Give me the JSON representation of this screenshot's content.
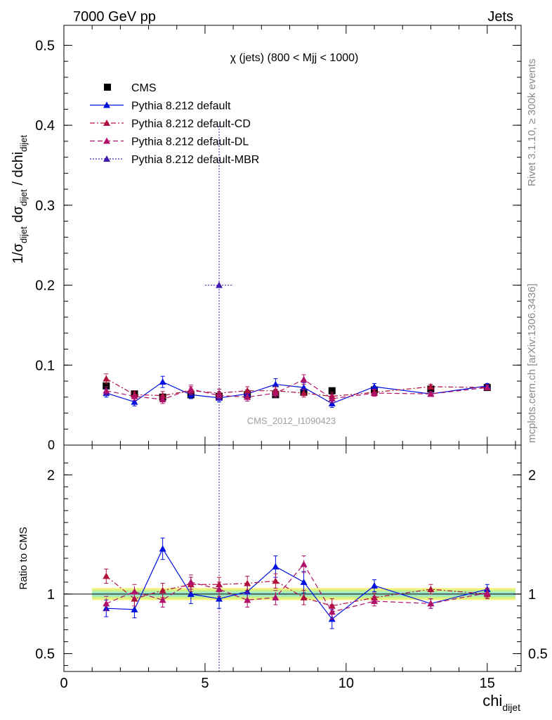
{
  "header": {
    "left": "7000 GeV pp",
    "right": "Jets"
  },
  "side_labels": {
    "rivet": "Rivet 3.1.10, ≥ 300k events",
    "mcplots": "mcplots.cern.ch [arXiv:1306.3436]"
  },
  "watermark": "CMS_2012_I1090423",
  "chart_data": [
    {
      "type": "line",
      "title": "χ (jets) (800 < Mjj < 1000)",
      "ylabel": {
        "base": "1/σ",
        "sub1": "dijet",
        "mid": " dσ",
        "sub2": "dijet",
        "tail": " / dchi",
        "sub3": "dijet"
      },
      "xlabel": {
        "base": "chi",
        "sub": "dijet"
      },
      "xlim": [
        0,
        16.2
      ],
      "ylim": [
        0,
        0.525
      ],
      "yticks": [
        0.1,
        0.2,
        0.3,
        0.4,
        0.5
      ],
      "ytick_labels": [
        "0.1",
        "0.2",
        "0.3",
        "0.4",
        "0.5"
      ],
      "y_zero_label": "0",
      "x": [
        1.5,
        2.5,
        3.5,
        4.5,
        5.5,
        6.5,
        7.5,
        8.5,
        9.5,
        11.0,
        13.0,
        15.0
      ],
      "xerr": [
        0.5,
        0.5,
        0.5,
        0.5,
        0.5,
        0.5,
        0.5,
        0.5,
        0.5,
        1.0,
        1.0,
        1.0
      ],
      "legend": [
        {
          "name": "CMS",
          "color": "#000000",
          "style": "square"
        },
        {
          "name": "Pythia 8.212 default",
          "color": "#0010e0",
          "style": "solid"
        },
        {
          "name": "Pythia 8.212 default-CD",
          "color": "#b0103a",
          "style": "dashdot"
        },
        {
          "name": "Pythia 8.212 default-DL",
          "color": "#b0106a",
          "style": "dash"
        },
        {
          "name": "Pythia 8.212 default-MBR",
          "color": "#4018b0",
          "style": "dot"
        }
      ],
      "series": [
        {
          "name": "CMS",
          "values": [
            0.074,
            0.064,
            0.06,
            0.063,
            0.061,
            0.063,
            0.063,
            0.066,
            0.068,
            0.069,
            0.07,
            0.072
          ],
          "yerr": [
            0.002,
            0.002,
            0.002,
            0.002,
            0.002,
            0.002,
            0.002,
            0.002,
            0.002,
            0.002,
            0.002,
            0.002
          ]
        },
        {
          "name": "Pythia 8.212 default",
          "values": [
            0.065,
            0.054,
            0.079,
            0.063,
            0.059,
            0.064,
            0.076,
            0.072,
            0.052,
            0.073,
            0.064,
            0.074
          ],
          "yerr": [
            0.005,
            0.005,
            0.007,
            0.005,
            0.005,
            0.005,
            0.007,
            0.006,
            0.005,
            0.004,
            0.003,
            0.003
          ]
        },
        {
          "name": "Pythia 8.212 default-CD",
          "values": [
            0.083,
            0.063,
            0.062,
            0.068,
            0.065,
            0.068,
            0.068,
            0.065,
            0.061,
            0.066,
            0.073,
            0.072
          ],
          "yerr": [
            0.006,
            0.005,
            0.005,
            0.005,
            0.005,
            0.005,
            0.005,
            0.005,
            0.005,
            0.004,
            0.003,
            0.003
          ]
        },
        {
          "name": "Pythia 8.212 default-DL",
          "values": [
            0.068,
            0.061,
            0.057,
            0.07,
            0.062,
            0.06,
            0.065,
            0.082,
            0.058,
            0.065,
            0.064,
            0.072
          ],
          "yerr": [
            0.005,
            0.005,
            0.005,
            0.005,
            0.005,
            0.005,
            0.005,
            0.006,
            0.005,
            0.004,
            0.003,
            0.003
          ]
        },
        {
          "name": "Pythia 8.212 default-MBR",
          "values": [
            null,
            null,
            null,
            null,
            0.2,
            null,
            null,
            null,
            null,
            null,
            null,
            null
          ],
          "yerr": [
            0,
            0,
            0,
            0,
            0.2,
            0,
            0,
            0,
            0,
            0,
            0,
            0
          ]
        }
      ]
    },
    {
      "type": "line",
      "ylabel": "Ratio to CMS",
      "xlim": [
        0,
        16.2
      ],
      "ylim": [
        0.35,
        2.25
      ],
      "yticks": [
        0.5,
        1,
        2
      ],
      "ytick_labels": [
        "0.5",
        "1",
        "2"
      ],
      "xticks": [
        0,
        5,
        10,
        15
      ],
      "xtick_labels": [
        "0",
        "5",
        "10",
        "15"
      ],
      "band": {
        "outer": "#f2f27a",
        "middle": "#c8f08a",
        "inner": "#9ee8c8",
        "half_widths": [
          0.05,
          0.035,
          0.02
        ]
      },
      "series": [
        {
          "name": "Pythia 8.212 default",
          "values": [
            0.88,
            0.87,
            1.38,
            1.0,
            0.96,
            1.02,
            1.23,
            1.1,
            0.79,
            1.07,
            0.92,
            1.04
          ],
          "yerr": [
            0.07,
            0.07,
            0.09,
            0.08,
            0.08,
            0.07,
            0.09,
            0.09,
            0.08,
            0.05,
            0.04,
            0.04
          ]
        },
        {
          "name": "Pythia 8.212 default-CD",
          "values": [
            1.15,
            0.96,
            1.03,
            1.08,
            1.08,
            1.09,
            1.11,
            0.97,
            0.9,
            0.97,
            1.04,
            1.0
          ],
          "yerr": [
            0.06,
            0.06,
            0.06,
            0.06,
            0.06,
            0.06,
            0.06,
            0.06,
            0.06,
            0.04,
            0.04,
            0.04
          ]
        },
        {
          "name": "Pythia 8.212 default-DL",
          "values": [
            0.92,
            1.02,
            0.95,
            1.1,
            1.04,
            0.95,
            0.97,
            1.25,
            0.85,
            0.94,
            0.92,
            1.01
          ],
          "yerr": [
            0.06,
            0.06,
            0.06,
            0.06,
            0.06,
            0.06,
            0.06,
            0.07,
            0.06,
            0.04,
            0.04,
            0.04
          ]
        }
      ]
    }
  ]
}
